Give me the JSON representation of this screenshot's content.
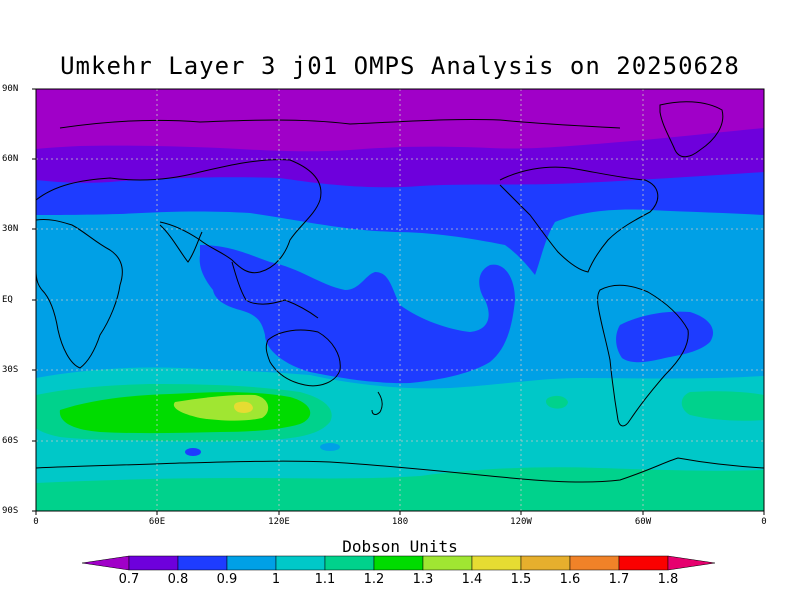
{
  "title": "Umkehr Layer 3 j01 OMPS Analysis on 20250628",
  "colorbar_title": "Dobson Units",
  "lat_ticks": [
    "90N",
    "60N",
    "30N",
    "EQ",
    "30S",
    "60S",
    "90S"
  ],
  "lon_ticks": [
    "0",
    "60E",
    "120E",
    "180",
    "120W",
    "60W",
    "0"
  ],
  "colorbar_labels": [
    "0.7",
    "0.8",
    "0.9",
    "1",
    "1.1",
    "1.2",
    "1.3",
    "1.4",
    "1.5",
    "1.6",
    "1.7",
    "1.8"
  ],
  "colorbar_colors": [
    "#a000c8",
    "#6e00dc",
    "#1e3cff",
    "#00a0e6",
    "#00c8c8",
    "#00d28c",
    "#00dc00",
    "#a0e632",
    "#e6dc32",
    "#e6af2d",
    "#f08228",
    "#fa0000",
    "#e6006e"
  ],
  "colors": {
    "band_0_7": "#a000c8",
    "band_0_8": "#6e00dc",
    "band_0_9": "#1e3cff",
    "band_1_0": "#00a0e6",
    "band_1_1": "#00c8c8",
    "band_1_2": "#00d28c",
    "band_1_3": "#00dc00",
    "band_1_4": "#a0e632",
    "band_1_5": "#e6dc32"
  }
}
